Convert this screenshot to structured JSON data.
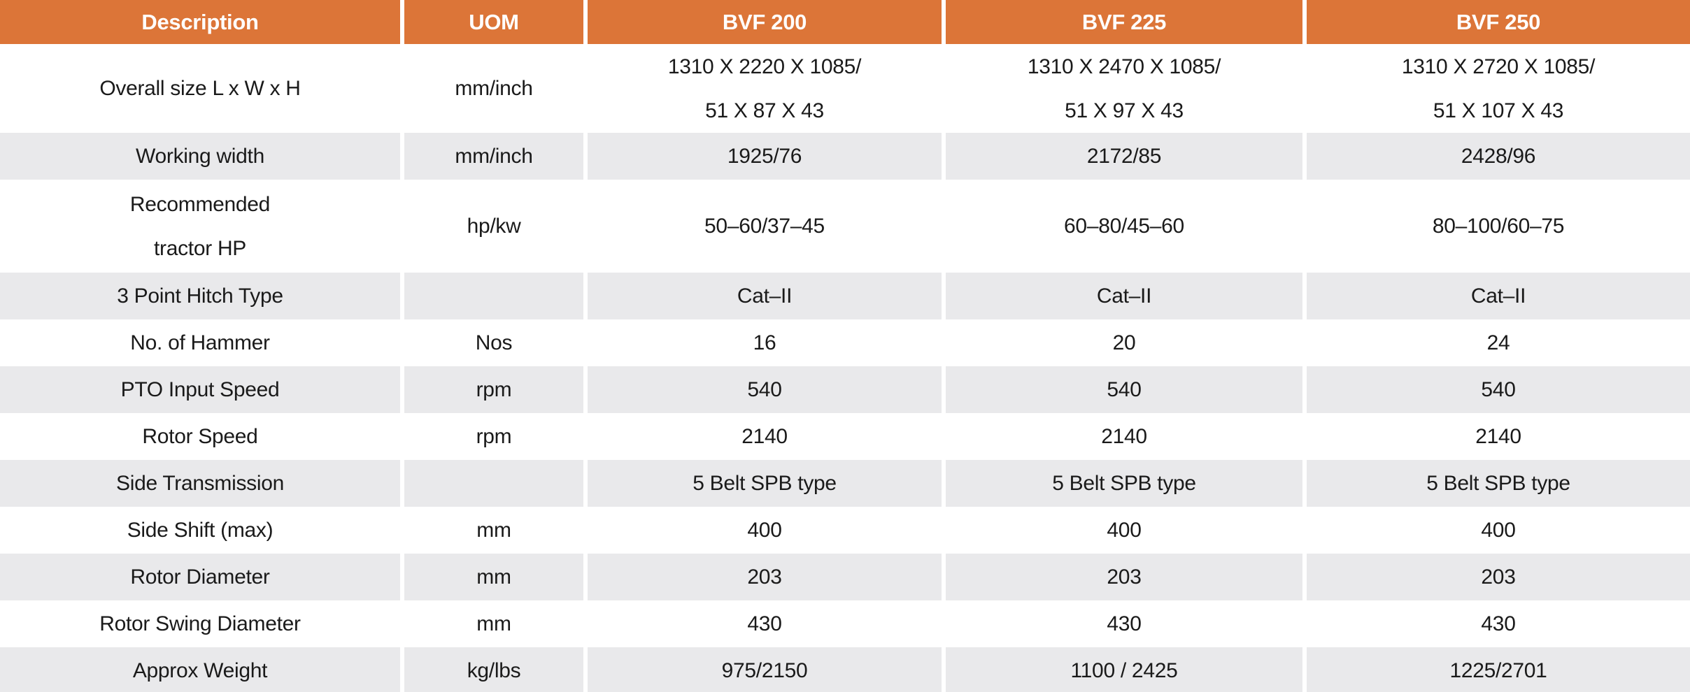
{
  "colors": {
    "header_bg": "#DC7538",
    "band_bg": "#E9E9EB",
    "header_text": "#FFFFFF",
    "body_text": "#1A1A1A",
    "separator": "#FFFFFF"
  },
  "table": {
    "headers": [
      "Description",
      "UOM",
      "BVF 200",
      "BVF 225",
      "BVF 250"
    ],
    "rows": [
      {
        "cells": [
          "Overall size L x W x H",
          "mm/inch",
          "1310 X 2220 X 1085/\n51 X 87 X 43",
          "1310 X 2470 X 1085/\n51 X 97 X 43",
          "1310 X 2720 X 1085/\n51 X 107 X 43"
        ]
      },
      {
        "cells": [
          "Working width",
          "mm/inch",
          "1925/76",
          "2172/85",
          "2428/96"
        ]
      },
      {
        "cells": [
          "Recommended\ntractor HP",
          "hp/kw",
          "50–60/37–45",
          "60–80/45–60",
          "80–100/60–75"
        ]
      },
      {
        "cells": [
          "3 Point Hitch Type",
          "",
          "Cat–II",
          "Cat–II",
          "Cat–II"
        ]
      },
      {
        "cells": [
          "No. of Hammer",
          "Nos",
          "16",
          "20",
          "24"
        ]
      },
      {
        "cells": [
          "PTO Input Speed",
          "rpm",
          "540",
          "540",
          "540"
        ]
      },
      {
        "cells": [
          "Rotor Speed",
          "rpm",
          "2140",
          "2140",
          "2140"
        ]
      },
      {
        "cells": [
          "Side Transmission",
          "",
          "5 Belt SPB type",
          "5 Belt SPB type",
          "5 Belt SPB type"
        ]
      },
      {
        "cells": [
          "Side Shift (max)",
          "mm",
          "400",
          "400",
          "400"
        ]
      },
      {
        "cells": [
          "Rotor Diameter",
          "mm",
          "203",
          "203",
          "203"
        ]
      },
      {
        "cells": [
          "Rotor Swing Diameter",
          "mm",
          "430",
          "430",
          "430"
        ]
      },
      {
        "cells": [
          "Approx Weight",
          "kg/lbs",
          "975/2150",
          "1100 / 2425",
          "1225/2701"
        ]
      }
    ]
  }
}
